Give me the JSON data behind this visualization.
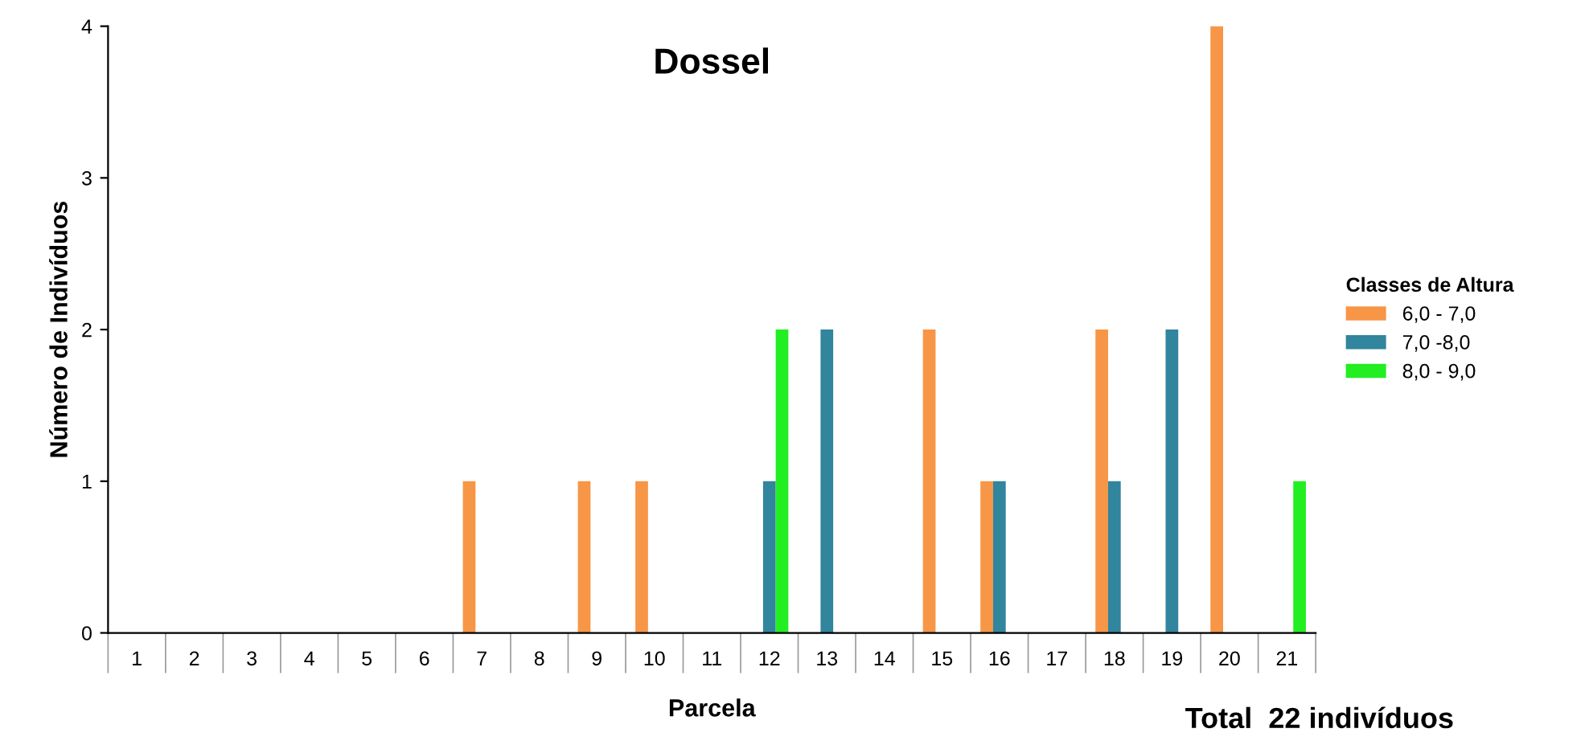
{
  "chart_data": {
    "type": "bar",
    "title": "Dossel",
    "xlabel": "Parcela",
    "ylabel": "Número de Indivíduos",
    "legend_title": "Classes de Altura",
    "categories": [
      "1",
      "2",
      "3",
      "4",
      "5",
      "6",
      "7",
      "8",
      "9",
      "10",
      "11",
      "12",
      "13",
      "14",
      "15",
      "16",
      "17",
      "18",
      "19",
      "20",
      "21"
    ],
    "series": [
      {
        "name": "6,0 - 7,0",
        "color": "#f79646",
        "values": [
          0,
          0,
          0,
          0,
          0,
          0,
          1,
          0,
          1,
          1,
          0,
          0,
          0,
          0,
          2,
          1,
          0,
          2,
          0,
          4,
          0
        ]
      },
      {
        "name": "7,0 -8,0",
        "color": "#31859c",
        "values": [
          0,
          0,
          0,
          0,
          0,
          0,
          0,
          0,
          0,
          0,
          0,
          1,
          2,
          0,
          0,
          1,
          0,
          1,
          2,
          0,
          0
        ]
      },
      {
        "name": "8,0 - 9,0",
        "color": "#22ee22",
        "values": [
          0,
          0,
          0,
          0,
          0,
          0,
          0,
          0,
          0,
          0,
          0,
          2,
          0,
          0,
          0,
          0,
          0,
          0,
          0,
          0,
          1
        ]
      }
    ],
    "ylim": [
      0,
      4
    ],
    "yticks": [
      0,
      1,
      2,
      3,
      4
    ],
    "grid": false,
    "legend": "right",
    "annotations": [
      "Total  22 indivíduos"
    ]
  }
}
